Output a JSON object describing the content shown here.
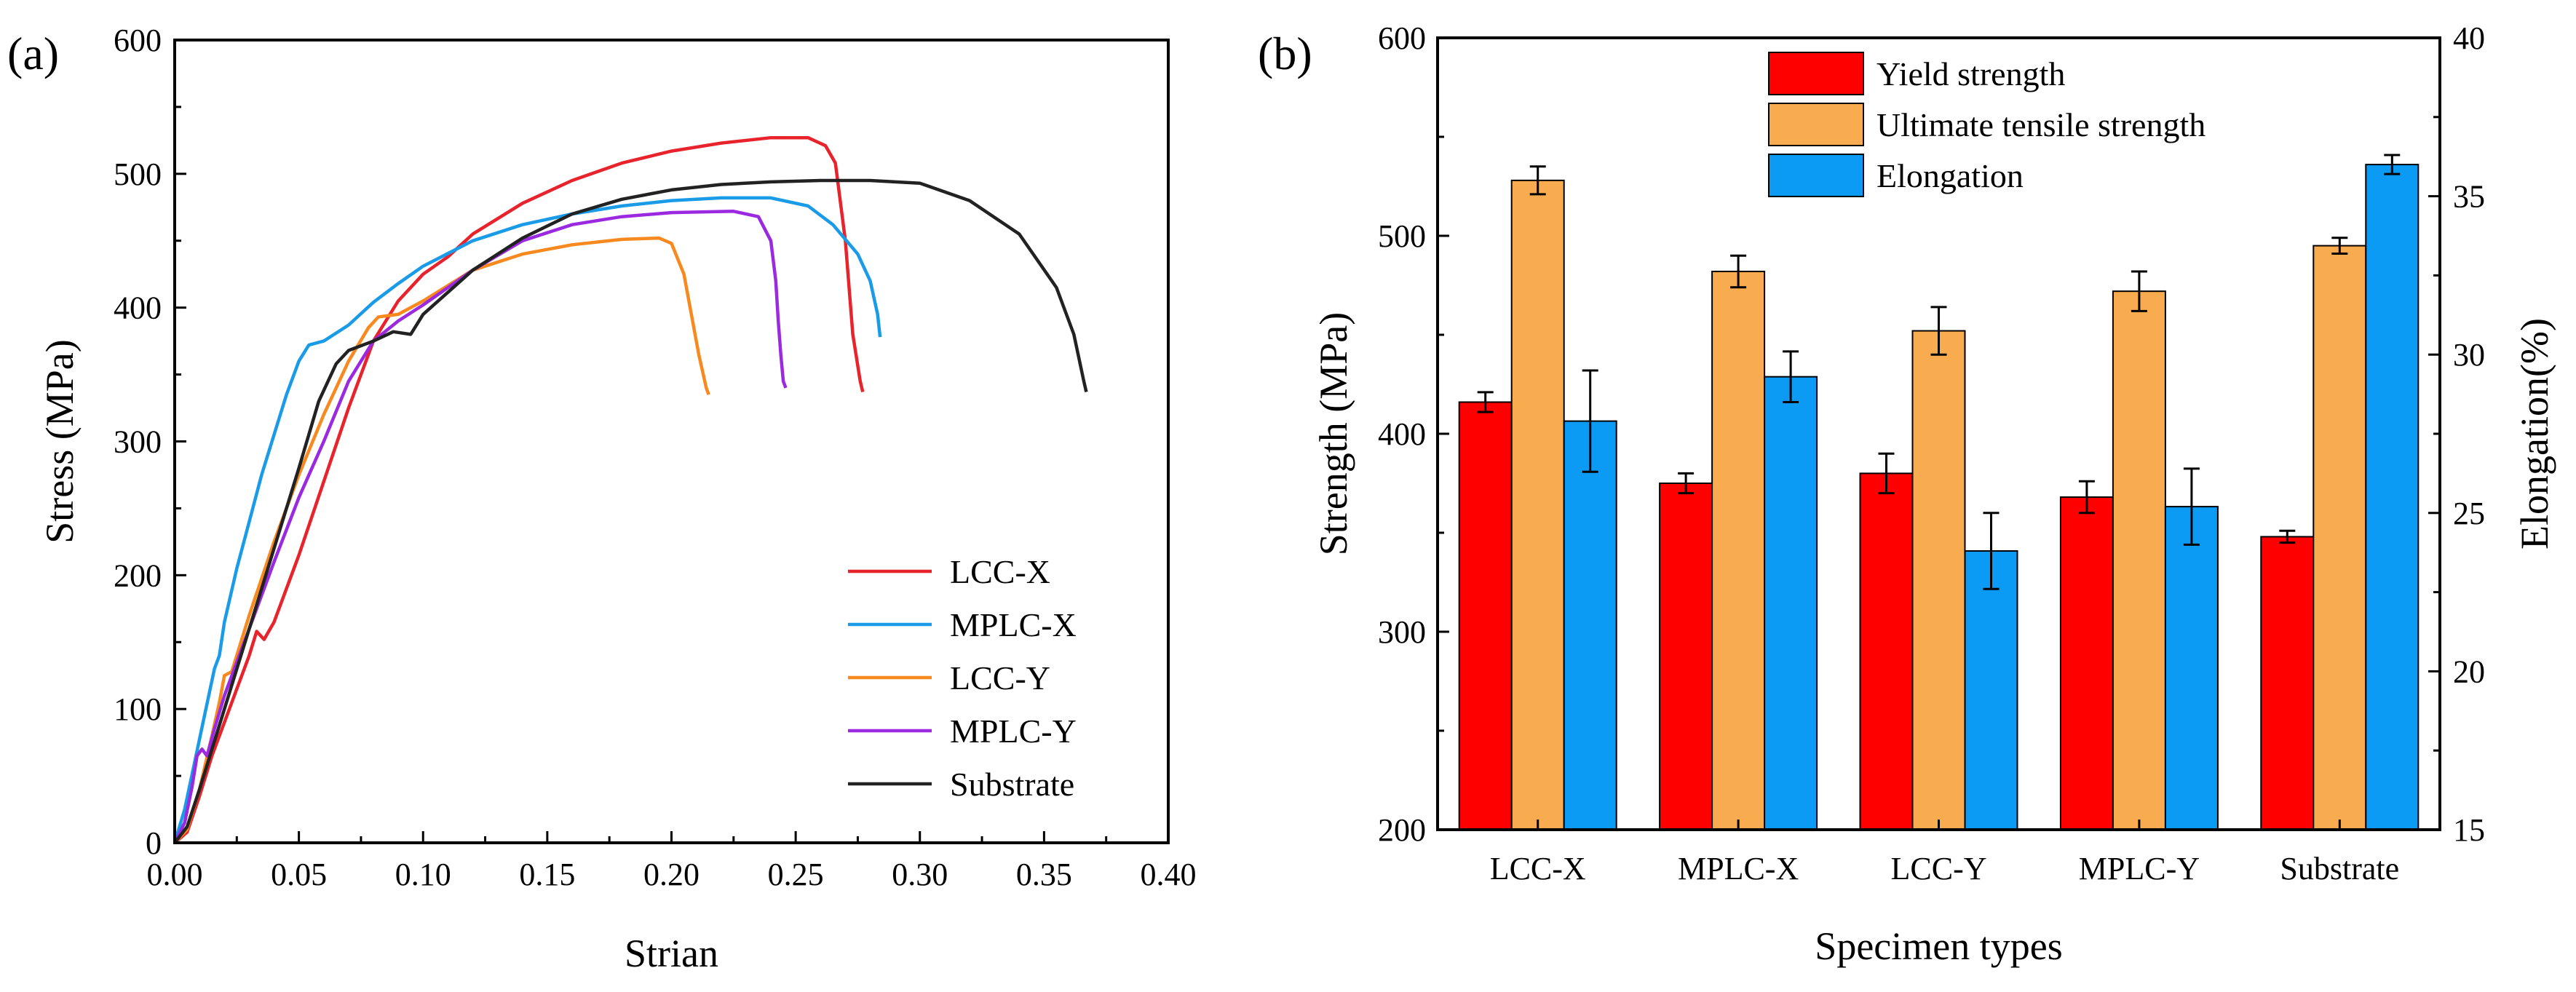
{
  "chart_data": [
    {
      "panel": "(a)",
      "type": "line",
      "title": "",
      "xlabel": "Strian",
      "ylabel": "Stress (MPa)",
      "xlim": [
        0.0,
        0.4
      ],
      "ylim": [
        0,
        600
      ],
      "x_ticks": [
        "0.00",
        "0.05",
        "0.10",
        "0.15",
        "0.20",
        "0.25",
        "0.30",
        "0.35",
        "0.40"
      ],
      "y_ticks": [
        "0",
        "100",
        "200",
        "300",
        "400",
        "500",
        "600"
      ],
      "legend_position": "lower-right",
      "series": [
        {
          "name": "LCC-X",
          "color": "#e8232b",
          "points": [
            [
              0.0,
              0
            ],
            [
              0.005,
              8
            ],
            [
              0.01,
              35
            ],
            [
              0.015,
              65
            ],
            [
              0.02,
              90
            ],
            [
              0.025,
              115
            ],
            [
              0.03,
              140
            ],
            [
              0.033,
              158
            ],
            [
              0.036,
              152
            ],
            [
              0.04,
              165
            ],
            [
              0.05,
              215
            ],
            [
              0.06,
              270
            ],
            [
              0.07,
              325
            ],
            [
              0.08,
              375
            ],
            [
              0.09,
              405
            ],
            [
              0.1,
              425
            ],
            [
              0.11,
              438
            ],
            [
              0.12,
              455
            ],
            [
              0.14,
              478
            ],
            [
              0.16,
              495
            ],
            [
              0.18,
              508
            ],
            [
              0.2,
              517
            ],
            [
              0.22,
              523
            ],
            [
              0.24,
              527
            ],
            [
              0.255,
              527
            ],
            [
              0.262,
              521
            ],
            [
              0.266,
              508
            ],
            [
              0.27,
              450
            ],
            [
              0.273,
              380
            ],
            [
              0.276,
              345
            ],
            [
              0.277,
              337
            ]
          ]
        },
        {
          "name": "MPLC-X",
          "color": "#1a9be8",
          "points": [
            [
              0.0,
              0
            ],
            [
              0.004,
              25
            ],
            [
              0.008,
              60
            ],
            [
              0.012,
              95
            ],
            [
              0.016,
              130
            ],
            [
              0.018,
              140
            ],
            [
              0.02,
              165
            ],
            [
              0.025,
              205
            ],
            [
              0.03,
              240
            ],
            [
              0.035,
              275
            ],
            [
              0.04,
              305
            ],
            [
              0.045,
              335
            ],
            [
              0.05,
              360
            ],
            [
              0.054,
              372
            ],
            [
              0.06,
              375
            ],
            [
              0.07,
              387
            ],
            [
              0.08,
              404
            ],
            [
              0.09,
              418
            ],
            [
              0.1,
              431
            ],
            [
              0.12,
              450
            ],
            [
              0.14,
              462
            ],
            [
              0.16,
              470
            ],
            [
              0.18,
              476
            ],
            [
              0.2,
              480
            ],
            [
              0.22,
              482
            ],
            [
              0.24,
              482
            ],
            [
              0.255,
              476
            ],
            [
              0.265,
              462
            ],
            [
              0.275,
              440
            ],
            [
              0.28,
              420
            ],
            [
              0.283,
              395
            ],
            [
              0.284,
              378
            ]
          ]
        },
        {
          "name": "LCC-Y",
          "color": "#f7891f",
          "points": [
            [
              0.0,
              0
            ],
            [
              0.005,
              10
            ],
            [
              0.01,
              40
            ],
            [
              0.015,
              80
            ],
            [
              0.018,
              105
            ],
            [
              0.02,
              125
            ],
            [
              0.023,
              128
            ],
            [
              0.025,
              140
            ],
            [
              0.03,
              170
            ],
            [
              0.04,
              225
            ],
            [
              0.05,
              275
            ],
            [
              0.06,
              320
            ],
            [
              0.07,
              360
            ],
            [
              0.078,
              385
            ],
            [
              0.082,
              393
            ],
            [
              0.09,
              395
            ],
            [
              0.1,
              405
            ],
            [
              0.12,
              428
            ],
            [
              0.14,
              440
            ],
            [
              0.16,
              447
            ],
            [
              0.18,
              451
            ],
            [
              0.195,
              452
            ],
            [
              0.2,
              448
            ],
            [
              0.205,
              425
            ],
            [
              0.208,
              395
            ],
            [
              0.211,
              365
            ],
            [
              0.214,
              340
            ],
            [
              0.215,
              335
            ]
          ]
        },
        {
          "name": "MPLC-Y",
          "color": "#9b29e0",
          "points": [
            [
              0.0,
              0
            ],
            [
              0.004,
              15
            ],
            [
              0.007,
              42
            ],
            [
              0.009,
              65
            ],
            [
              0.011,
              70
            ],
            [
              0.013,
              65
            ],
            [
              0.016,
              85
            ],
            [
              0.02,
              110
            ],
            [
              0.03,
              160
            ],
            [
              0.04,
              210
            ],
            [
              0.05,
              258
            ],
            [
              0.06,
              300
            ],
            [
              0.07,
              345
            ],
            [
              0.08,
              375
            ],
            [
              0.09,
              390
            ],
            [
              0.1,
              402
            ],
            [
              0.12,
              428
            ],
            [
              0.14,
              450
            ],
            [
              0.16,
              462
            ],
            [
              0.18,
              468
            ],
            [
              0.2,
              471
            ],
            [
              0.225,
              472
            ],
            [
              0.235,
              468
            ],
            [
              0.24,
              450
            ],
            [
              0.242,
              420
            ],
            [
              0.243,
              390
            ],
            [
              0.244,
              365
            ],
            [
              0.245,
              345
            ],
            [
              0.246,
              340
            ]
          ]
        },
        {
          "name": "Substrate",
          "color": "#222222",
          "points": [
            [
              0.0,
              0
            ],
            [
              0.005,
              12
            ],
            [
              0.01,
              40
            ],
            [
              0.02,
              100
            ],
            [
              0.03,
              160
            ],
            [
              0.04,
              220
            ],
            [
              0.05,
              280
            ],
            [
              0.058,
              330
            ],
            [
              0.065,
              358
            ],
            [
              0.07,
              368
            ],
            [
              0.08,
              375
            ],
            [
              0.088,
              382
            ],
            [
              0.095,
              380
            ],
            [
              0.1,
              395
            ],
            [
              0.12,
              428
            ],
            [
              0.14,
              452
            ],
            [
              0.16,
              470
            ],
            [
              0.18,
              481
            ],
            [
              0.2,
              488
            ],
            [
              0.22,
              492
            ],
            [
              0.24,
              494
            ],
            [
              0.26,
              495
            ],
            [
              0.28,
              495
            ],
            [
              0.3,
              493
            ],
            [
              0.32,
              480
            ],
            [
              0.34,
              455
            ],
            [
              0.355,
              415
            ],
            [
              0.362,
              380
            ],
            [
              0.366,
              345
            ],
            [
              0.367,
              337
            ]
          ]
        }
      ]
    },
    {
      "panel": "(b)",
      "type": "bar",
      "title": "",
      "xlabel": "Specimen types",
      "ylabel": "Strength (MPa)",
      "y2label": "Elongation(%)",
      "ylim": [
        200,
        600
      ],
      "y2lim": [
        15,
        40
      ],
      "y_ticks": [
        "200",
        "300",
        "400",
        "500",
        "600"
      ],
      "y2_ticks": [
        "15",
        "20",
        "25",
        "30",
        "35",
        "40"
      ],
      "categories": [
        "LCC-X",
        "MPLC-X",
        "LCC-Y",
        "MPLC-Y",
        "Substrate"
      ],
      "legend_position": "top-center",
      "series": [
        {
          "name": "Yield strength",
          "axis": "left",
          "color": "#ff0000",
          "values": [
            416,
            375,
            380,
            368,
            348
          ],
          "errors": [
            5,
            5,
            10,
            8,
            3
          ]
        },
        {
          "name": "Ultimate tensile strength",
          "axis": "left",
          "color": "#f9ab50",
          "values": [
            528,
            482,
            452,
            472,
            495
          ],
          "errors": [
            7,
            8,
            12,
            10,
            4
          ]
        },
        {
          "name": "Elongation",
          "axis": "right",
          "color": "#0b9bf5",
          "values": [
            27.9,
            29.3,
            23.8,
            25.2,
            36.0
          ],
          "errors": [
            1.6,
            0.8,
            1.2,
            1.2,
            0.3
          ]
        }
      ]
    }
  ]
}
